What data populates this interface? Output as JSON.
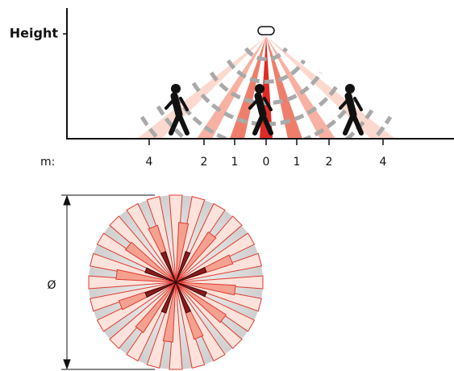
{
  "side_view": {
    "y_label": "Height",
    "x_prefix": "m:",
    "distance_labels": [
      "4",
      "2",
      "1",
      "0",
      "1",
      "2",
      "4"
    ]
  },
  "top_view": {
    "diameter_label": "Ø"
  }
}
